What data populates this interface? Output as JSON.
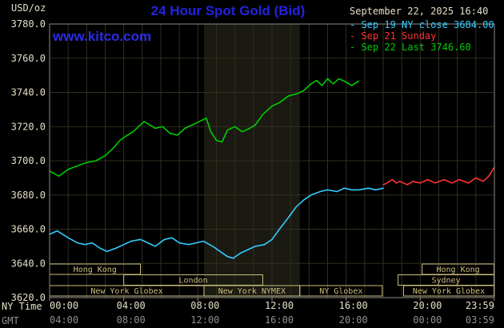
{
  "header": {
    "unit_label": "USD/oz",
    "title": "24 Hour Spot Gold (Bid)",
    "datetime": "September 22, 2025 16:40",
    "watermark": "www.kitco.com",
    "legend": [
      {
        "marker": "-",
        "label": "Sep 19 NY close 3684.00",
        "color": "#33ccff"
      },
      {
        "marker": "-",
        "label": "Sep 21 Sunday",
        "color": "#ff3333"
      },
      {
        "marker": "-",
        "label": "Sep 22 Last 3746.60",
        "color": "#00cc00"
      }
    ]
  },
  "footer": {
    "ny_time_label": "NY Time",
    "gmt_label": "GMT"
  },
  "colors": {
    "background": "#000000",
    "title_blue": "#2323dd",
    "axis_text": "#e3dfc4",
    "gmt_text": "#8f8f8f",
    "grid": "#2f2f20",
    "plot_border": "#8c8c8c",
    "session_box": "#cbbd7e",
    "nymex_band": "#1a1a12"
  },
  "chart_data": {
    "type": "line",
    "title": "24 Hour Spot Gold (Bid)",
    "ylabel": "USD/oz",
    "ylim": [
      3620,
      3780
    ],
    "y_tick_step": 20,
    "y_tick_labels": [
      "3780.0",
      "3760.0",
      "3740.0",
      "3720.0",
      "3700.0",
      "3680.0",
      "3660.0",
      "3640.0",
      "3620.0"
    ],
    "x_hours_range": [
      0,
      24
    ],
    "x_ticks": [
      {
        "hour": 0,
        "ny": "00:00",
        "gmt": "04:00"
      },
      {
        "hour": 4,
        "ny": "04:00",
        "gmt": "08:00"
      },
      {
        "hour": 8,
        "ny": "08:00",
        "gmt": "12:00"
      },
      {
        "hour": 12,
        "ny": "12:00",
        "gmt": "16:00"
      },
      {
        "hour": 16,
        "ny": "16:00",
        "gmt": "20:00"
      },
      {
        "hour": 20,
        "ny": "20:00",
        "gmt": "00:00"
      },
      {
        "hour": 23.983,
        "ny": "23:59",
        "gmt": "03:59"
      }
    ],
    "grid": true,
    "legend_position": "top-right",
    "ny_close_value": 3684.0,
    "last_value": 3746.6,
    "nymex_band": {
      "start_hour": 8.33,
      "end_hour": 13.5
    },
    "series": [
      {
        "name": "Sep 19 NY close 3684.00",
        "color": "#33ccff",
        "points": [
          [
            0,
            3657
          ],
          [
            0.4,
            3659
          ],
          [
            1,
            3655
          ],
          [
            1.5,
            3652
          ],
          [
            1.9,
            3651
          ],
          [
            2.3,
            3652
          ],
          [
            2.7,
            3649
          ],
          [
            3.1,
            3647
          ],
          [
            3.6,
            3649
          ],
          [
            4,
            3651
          ],
          [
            4.4,
            3653
          ],
          [
            4.9,
            3654
          ],
          [
            5.3,
            3652
          ],
          [
            5.7,
            3650
          ],
          [
            6.2,
            3654
          ],
          [
            6.6,
            3655
          ],
          [
            7,
            3652
          ],
          [
            7.5,
            3651
          ],
          [
            7.9,
            3652
          ],
          [
            8.3,
            3653
          ],
          [
            8.8,
            3650
          ],
          [
            9.2,
            3647
          ],
          [
            9.6,
            3644
          ],
          [
            9.9,
            3643
          ],
          [
            10.3,
            3646
          ],
          [
            10.7,
            3648
          ],
          [
            11.1,
            3650
          ],
          [
            11.6,
            3651
          ],
          [
            12,
            3654
          ],
          [
            12.4,
            3660
          ],
          [
            12.9,
            3667
          ],
          [
            13.3,
            3673
          ],
          [
            13.7,
            3677
          ],
          [
            14.1,
            3680
          ],
          [
            14.6,
            3682
          ],
          [
            15,
            3683
          ],
          [
            15.5,
            3682
          ],
          [
            15.9,
            3684
          ],
          [
            16.3,
            3683
          ],
          [
            16.7,
            3683
          ],
          [
            17.2,
            3684
          ],
          [
            17.6,
            3683
          ],
          [
            18,
            3684
          ]
        ]
      },
      {
        "name": "Sep 21 Sunday",
        "color": "#ff3333",
        "points": [
          [
            18,
            3686
          ],
          [
            18.2,
            3687
          ],
          [
            18.5,
            3689
          ],
          [
            18.7,
            3687
          ],
          [
            18.9,
            3688
          ],
          [
            19.3,
            3686
          ],
          [
            19.6,
            3688
          ],
          [
            20,
            3687
          ],
          [
            20.4,
            3689
          ],
          [
            20.8,
            3687
          ],
          [
            21.3,
            3689
          ],
          [
            21.7,
            3687
          ],
          [
            22.1,
            3689
          ],
          [
            22.6,
            3687
          ],
          [
            23,
            3690
          ],
          [
            23.4,
            3688
          ],
          [
            23.7,
            3691
          ],
          [
            23.983,
            3696
          ]
        ]
      },
      {
        "name": "Sep 22 Last 3746.60",
        "color": "#00cc00",
        "points": [
          [
            0,
            3694
          ],
          [
            0.5,
            3691
          ],
          [
            1,
            3695
          ],
          [
            1.5,
            3697
          ],
          [
            2,
            3699
          ],
          [
            2.5,
            3700
          ],
          [
            3,
            3703
          ],
          [
            3.4,
            3707
          ],
          [
            3.8,
            3712
          ],
          [
            4.2,
            3715
          ],
          [
            4.5,
            3717
          ],
          [
            4.8,
            3720
          ],
          [
            5.1,
            3723
          ],
          [
            5.4,
            3721
          ],
          [
            5.7,
            3719
          ],
          [
            6.1,
            3720
          ],
          [
            6.5,
            3716
          ],
          [
            6.9,
            3715
          ],
          [
            7.3,
            3719
          ],
          [
            7.7,
            3721
          ],
          [
            8.1,
            3723
          ],
          [
            8.45,
            3725
          ],
          [
            8.7,
            3717
          ],
          [
            9,
            3712
          ],
          [
            9.3,
            3711
          ],
          [
            9.6,
            3718
          ],
          [
            10,
            3720
          ],
          [
            10.4,
            3717
          ],
          [
            10.8,
            3719
          ],
          [
            11.1,
            3721
          ],
          [
            11.5,
            3727
          ],
          [
            12,
            3732
          ],
          [
            12.4,
            3734
          ],
          [
            12.9,
            3738
          ],
          [
            13.3,
            3739
          ],
          [
            13.7,
            3741
          ],
          [
            14.1,
            3745
          ],
          [
            14.4,
            3747
          ],
          [
            14.7,
            3744
          ],
          [
            15,
            3748
          ],
          [
            15.3,
            3745
          ],
          [
            15.6,
            3748
          ],
          [
            16,
            3746
          ],
          [
            16.3,
            3744
          ],
          [
            16.67,
            3746.6
          ]
        ]
      }
    ],
    "sessions": [
      {
        "row": 0,
        "label": "Hong Kong",
        "start_hour": 0,
        "end_hour": 4.9
      },
      {
        "row": 0,
        "label": "Hong Kong",
        "start_hour": 20.1,
        "end_hour": 23.983
      },
      {
        "row": 1,
        "label": "London",
        "start_hour": 4.0,
        "end_hour": 11.5
      },
      {
        "row": 1,
        "label": "Sydney",
        "start_hour": 18.8,
        "end_hour": 23.983
      },
      {
        "row": 2,
        "label": "New York Globex",
        "start_hour": 0,
        "end_hour": 8.33
      },
      {
        "row": 2,
        "label": "New York NYMEX",
        "start_hour": 8.33,
        "end_hour": 13.5
      },
      {
        "row": 2,
        "label": "NY Globex",
        "start_hour": 13.5,
        "end_hour": 17.95
      },
      {
        "row": 2,
        "label": "New York Globex",
        "start_hour": 19.1,
        "end_hour": 23.983
      }
    ]
  }
}
